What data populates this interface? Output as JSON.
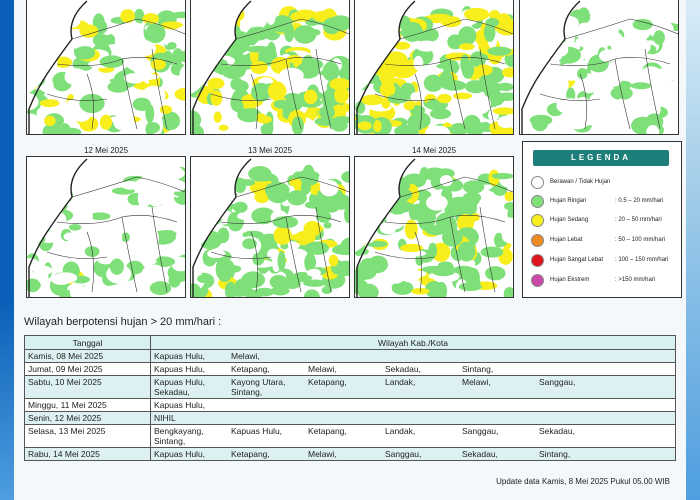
{
  "maps": {
    "dates": [
      "12 Mei 2025",
      "13 Mei 2025",
      "14 Mei 2025"
    ]
  },
  "legend": {
    "title": "LEGENDA",
    "items": [
      {
        "name": "Berawan / Tidak Hujan",
        "range": "",
        "color": "#ffffff"
      },
      {
        "name": "Hujan Ringan",
        "range": ": 0.5 – 20 mm/hari",
        "color": "#7fe07a"
      },
      {
        "name": "Hujan Sedang",
        "range": ": 20 – 50 mm/hari",
        "color": "#f7ee1c"
      },
      {
        "name": "Hujan Lebat",
        "range": ": 50 – 100 mm/hari",
        "color": "#f08a24"
      },
      {
        "name": "Hujan Sangat Lebat",
        "range": ": 100 – 150 mm/hari",
        "color": "#e0141c"
      },
      {
        "name": "Hujan Ekstrem",
        "range": ": >150 mm/hari",
        "color": "#c94aa8"
      }
    ]
  },
  "table": {
    "title": "Wilayah berpotensi hujan > 20 mm/hari :",
    "headers": [
      "Tanggal",
      "Wilayah Kab./Kota"
    ],
    "rows": [
      {
        "date": "Kamis, 08 Mei 2025",
        "regions": [
          "Kapuas Hulu,",
          "Melawi,"
        ]
      },
      {
        "date": "Jumat, 09 Mei 2025",
        "regions": [
          "Kapuas Hulu,",
          "Ketapang,",
          "Melawi,",
          "Sekadau,",
          "Sintang,"
        ]
      },
      {
        "date": "Sabtu, 10 Mei 2025",
        "regions": [
          "Kapuas Hulu,",
          "Kayong Utara,",
          "Ketapang,",
          "Landak,",
          "Melawi,",
          "Sanggau,",
          "Sekadau,",
          "Sintang,"
        ]
      },
      {
        "date": "Minggu, 11 Mei 2025",
        "regions": [
          "Kapuas Hulu,"
        ]
      },
      {
        "date": "Senin, 12 Mei 2025",
        "regions": [
          "NIHIL"
        ]
      },
      {
        "date": "Selasa, 13 Mei 2025",
        "regions": [
          "Bengkayang,",
          "Kapuas Hulu,",
          "Ketapang,",
          "Landak,",
          "Sanggau,",
          "Sekadau,",
          "Sintang,"
        ]
      },
      {
        "date": "Rabu, 14 Mei 2025",
        "regions": [
          "Kapuas Hulu,",
          "Ketapang,",
          "Melawi,",
          "Sanggau,",
          "Sekadau,",
          "Sintang,"
        ]
      }
    ]
  },
  "footer": {
    "update": "Update data Kamis, 8 Mei 2025 Pukul 05.00 WIB"
  }
}
